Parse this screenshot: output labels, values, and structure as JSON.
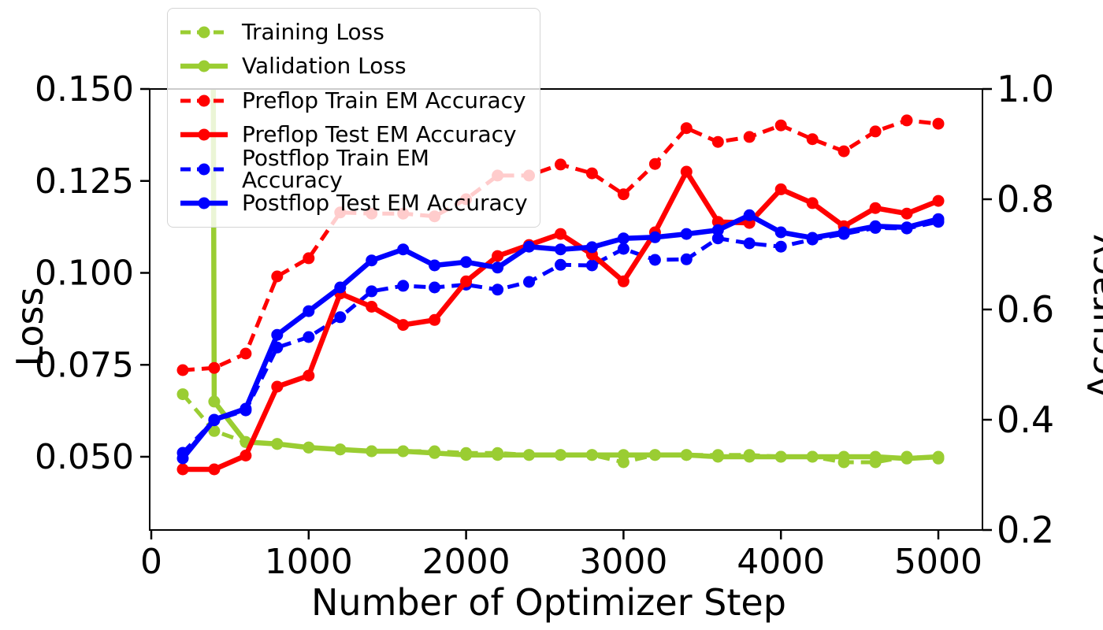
{
  "chart_data": {
    "type": "line",
    "title": "",
    "xlabel": "Number of Optimizer Step",
    "ylabel_left": "Loss",
    "ylabel_right": "Accuracy",
    "x_axis_range": [
      0,
      5280
    ],
    "x_tick_labels": [
      "0",
      "1000",
      "2000",
      "3000",
      "4000",
      "5000"
    ],
    "x_tick_values": [
      0,
      1000,
      2000,
      3000,
      4000,
      5000
    ],
    "y_left_tick_labels": [
      "0.150",
      "0.125",
      "0.100",
      "0.075",
      "0.050"
    ],
    "y_left_tick_values": [
      0.15,
      0.125,
      0.1,
      0.075,
      0.05
    ],
    "y_right_tick_labels": [
      "1.0",
      "0.8",
      "0.6",
      "0.4",
      "0.2"
    ],
    "y_right_tick_values": [
      1.0,
      0.8,
      0.6,
      0.4,
      0.2
    ],
    "grid": false,
    "legend_position": "upper-left",
    "x": [
      200,
      400,
      600,
      800,
      1000,
      1200,
      1400,
      1600,
      1800,
      2000,
      2200,
      2400,
      2600,
      2800,
      3000,
      3200,
      3400,
      3600,
      3800,
      4000,
      4200,
      4400,
      4600,
      4800,
      5000
    ],
    "note": "Validation Loss at step 200 spikes far above the top of the Loss axis; the line is clipped at the plot boundary and appears as a vertical green line at step ~400 passing under the legend.",
    "series": [
      {
        "id": "training-loss",
        "name": "Training Loss",
        "axis": "loss",
        "color": "#9ACD32",
        "style": "dashed",
        "values": [
          0.067,
          0.057,
          0.054,
          0.0535,
          0.0525,
          0.052,
          0.0515,
          0.0515,
          0.0515,
          0.051,
          0.051,
          0.0505,
          0.0505,
          0.0505,
          0.0485,
          0.0505,
          0.0505,
          0.0505,
          0.0505,
          0.05,
          0.05,
          0.0485,
          0.0485,
          0.05,
          0.0495
        ]
      },
      {
        "id": "validation-loss",
        "name": "Validation Loss",
        "axis": "loss",
        "color": "#9ACD32",
        "style": "solid",
        "values": [
          3.0,
          0.065,
          0.054,
          0.0535,
          0.0525,
          0.052,
          0.0515,
          0.0515,
          0.051,
          0.0505,
          0.0505,
          0.0505,
          0.0505,
          0.0505,
          0.0505,
          0.0505,
          0.0505,
          0.05,
          0.05,
          0.05,
          0.05,
          0.05,
          0.05,
          0.0495,
          0.05
        ]
      },
      {
        "id": "preflop-train-em-accuracy",
        "name": "Preflop Train EM Accuracy",
        "axis": "accuracy",
        "color": "#FF0000",
        "style": "dashed",
        "values": [
          0.49,
          0.494,
          0.52,
          0.66,
          0.693,
          0.776,
          0.774,
          0.774,
          0.769,
          0.8,
          0.843,
          0.843,
          0.863,
          0.847,
          0.809,
          0.864,
          0.929,
          0.904,
          0.913,
          0.934,
          0.909,
          0.887,
          0.923,
          0.943,
          0.937
        ]
      },
      {
        "id": "postflop-train-em-accuracy",
        "name": "Postflop Train EM Accuracy",
        "axis": "accuracy",
        "color": "#0000FF",
        "style": "dashed",
        "values": [
          0.34,
          0.399,
          0.417,
          0.531,
          0.55,
          0.586,
          0.633,
          0.643,
          0.64,
          0.645,
          0.636,
          0.65,
          0.681,
          0.68,
          0.71,
          0.69,
          0.691,
          0.729,
          0.72,
          0.714,
          0.727,
          0.737,
          0.748,
          0.747,
          0.759
        ]
      },
      {
        "id": "preflop-test-em-accuracy",
        "name": "Preflop Test EM Accuracy",
        "axis": "accuracy",
        "color": "#FF0000",
        "style": "solid",
        "values": [
          0.31,
          0.31,
          0.335,
          0.46,
          0.48,
          0.629,
          0.605,
          0.572,
          0.581,
          0.651,
          0.697,
          0.717,
          0.737,
          0.7,
          0.651,
          0.74,
          0.85,
          0.759,
          0.757,
          0.818,
          0.793,
          0.751,
          0.784,
          0.774,
          0.797
        ]
      },
      {
        "id": "postflop-test-em-accuracy",
        "name": "Postflop Test EM Accuracy",
        "axis": "accuracy",
        "color": "#0000FF",
        "style": "solid",
        "values": [
          0.33,
          0.4,
          0.42,
          0.554,
          0.597,
          0.64,
          0.689,
          0.709,
          0.68,
          0.686,
          0.676,
          0.714,
          0.709,
          0.713,
          0.729,
          0.731,
          0.737,
          0.744,
          0.771,
          0.74,
          0.73,
          0.74,
          0.751,
          0.749,
          0.764
        ]
      }
    ],
    "legend_order": [
      "training-loss",
      "validation-loss",
      "preflop-train-em-accuracy",
      "preflop-test-em-accuracy",
      "postflop-train-em-accuracy",
      "postflop-test-em-accuracy"
    ]
  }
}
